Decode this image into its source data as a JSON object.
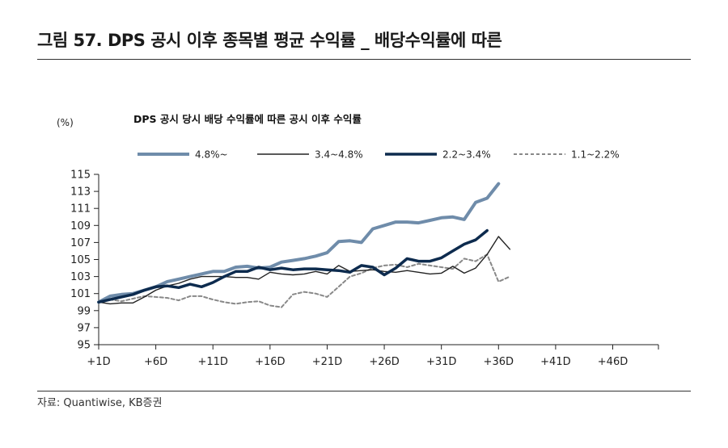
{
  "figure_title": "그림 57. DPS 공시 이후 종목별 평균 수익률 _ 배당수익률에 따른",
  "source": "자료: Quantiwise, KB증권",
  "chart_data": {
    "type": "line",
    "title": "DPS 공시 당시 배당 수익률에 따른 공시 이후 수익률",
    "ylabel": "(%)",
    "xlabel": "",
    "ylim": [
      95,
      115
    ],
    "yticks": [
      95,
      97,
      99,
      101,
      103,
      105,
      107,
      109,
      111,
      113,
      115
    ],
    "xlim": [
      1,
      50
    ],
    "xticks": [
      1,
      6,
      11,
      16,
      21,
      26,
      31,
      36,
      41,
      46
    ],
    "xtick_labels": [
      "+1D",
      "+6D",
      "+11D",
      "+16D",
      "+21D",
      "+26D",
      "+31D",
      "+36D",
      "+41D",
      "+46D"
    ],
    "legend_position": "top",
    "series": [
      {
        "name": "4.8%~",
        "color": "#6f8caa",
        "style": "solid-thick",
        "values": [
          100.0,
          100.7,
          100.9,
          101.0,
          101.4,
          101.8,
          102.4,
          102.7,
          103.0,
          103.3,
          103.6,
          103.6,
          104.1,
          104.2,
          104.0,
          104.1,
          104.7,
          104.9,
          105.1,
          105.4,
          105.8,
          107.1,
          107.2,
          107.0,
          108.6,
          109.0,
          109.4,
          109.4,
          109.3,
          109.6,
          109.9,
          110.0,
          109.7,
          111.7,
          112.2,
          113.9
        ]
      },
      {
        "name": "3.4~4.8%",
        "color": "#222222",
        "style": "solid-thin",
        "values": [
          100.0,
          99.8,
          99.9,
          99.9,
          100.6,
          101.4,
          101.9,
          102.2,
          102.7,
          103.0,
          103.0,
          103.0,
          102.9,
          102.9,
          102.7,
          103.5,
          103.3,
          103.2,
          103.3,
          103.6,
          103.3,
          104.3,
          103.6,
          103.7,
          103.8,
          103.6,
          103.5,
          103.7,
          103.5,
          103.3,
          103.4,
          104.2,
          103.4,
          104.0,
          105.6,
          107.7,
          106.2
        ]
      },
      {
        "name": "2.2~3.4%",
        "color": "#0d2b4e",
        "style": "solid-bold",
        "values": [
          100.0,
          100.3,
          100.6,
          100.9,
          101.4,
          101.8,
          101.9,
          101.7,
          102.1,
          101.8,
          102.3,
          103.0,
          103.6,
          103.6,
          104.1,
          103.8,
          104.0,
          103.8,
          103.9,
          103.9,
          103.8,
          103.7,
          103.5,
          104.3,
          104.1,
          103.2,
          104.0,
          105.1,
          104.8,
          104.8,
          105.2,
          106.0,
          106.8,
          107.3,
          108.4
        ]
      },
      {
        "name": "1.1~2.2%",
        "color": "#888888",
        "style": "dashed",
        "values": [
          100.0,
          100.3,
          100.1,
          100.4,
          100.7,
          100.6,
          100.5,
          100.2,
          100.7,
          100.7,
          100.3,
          100.0,
          99.8,
          100.0,
          100.1,
          99.6,
          99.4,
          100.9,
          101.2,
          101.0,
          100.6,
          101.8,
          103.0,
          103.4,
          104.0,
          104.3,
          104.4,
          104.1,
          104.5,
          104.3,
          104.1,
          103.9,
          105.1,
          104.8,
          105.6,
          102.4,
          103.0
        ]
      }
    ]
  }
}
